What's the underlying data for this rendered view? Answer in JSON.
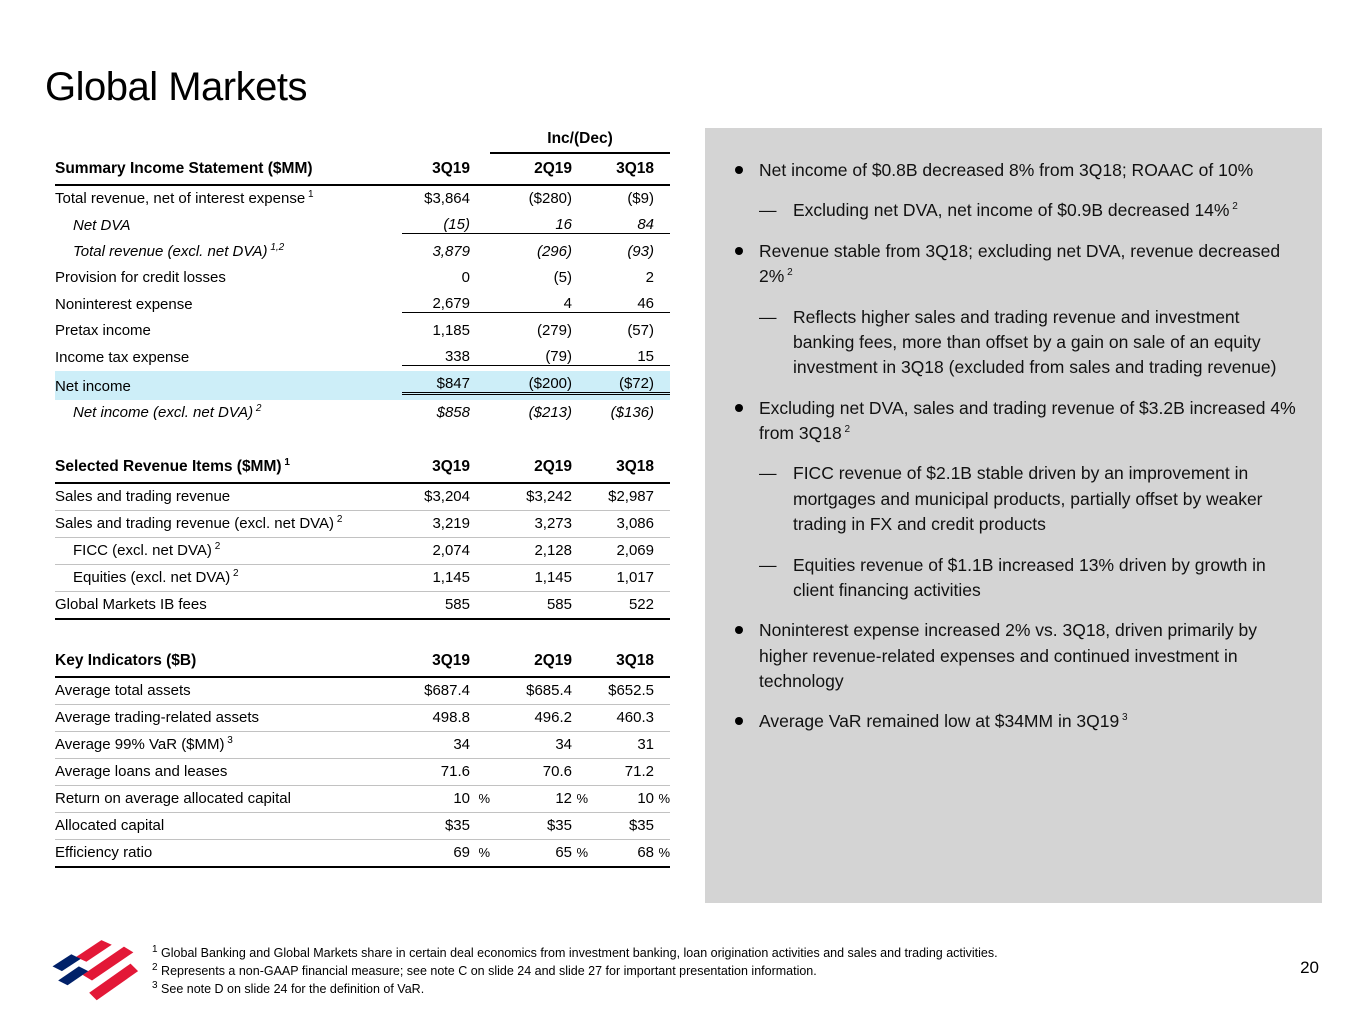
{
  "slide": {
    "title": "Global Markets",
    "page_number": "20",
    "colors": {
      "highlight": "#cdeef8",
      "panel": "#d4d4d4",
      "logo_red": "#e31837",
      "logo_blue": "#012169"
    }
  },
  "tables": [
    {
      "group_header": "Inc/(Dec)",
      "header": {
        "label": "Summary Income Statement ($MM)",
        "sup": "",
        "cols": [
          "3Q19",
          "2Q19",
          "3Q18"
        ]
      },
      "bordered": false,
      "separators": false,
      "rows": [
        {
          "label": "Total revenue, net of interest expense",
          "sup": "1",
          "cells": [
            "$3,864",
            "($280)",
            "($9)"
          ]
        },
        {
          "label": "Net DVA",
          "indent": 1,
          "italic": true,
          "underline": true,
          "cells": [
            "(15)",
            "16",
            "84"
          ]
        },
        {
          "label": "Total revenue (excl. net DVA)",
          "sup": "1,2",
          "indent": 1,
          "italic": true,
          "cells": [
            "3,879",
            "(296)",
            "(93)"
          ]
        },
        {
          "label": "Provision for credit losses",
          "cells": [
            "0",
            "(5)",
            "2"
          ]
        },
        {
          "label": "Noninterest expense",
          "underline": true,
          "cells": [
            "2,679",
            "4",
            "46"
          ]
        },
        {
          "label": "Pretax income",
          "cells": [
            "1,185",
            "(279)",
            "(57)"
          ]
        },
        {
          "label": "Income tax expense",
          "underline": true,
          "cells": [
            "338",
            "(79)",
            "15"
          ]
        },
        {
          "label": "Net income",
          "highlight": true,
          "double_underline": true,
          "cells": [
            "$847",
            "($200)",
            "($72)"
          ]
        },
        {
          "label": "Net income (excl. net DVA)",
          "sup": "2",
          "indent": 1,
          "italic": true,
          "cells": [
            "$858",
            "($213)",
            "($136)"
          ]
        }
      ]
    },
    {
      "group_header": "",
      "header": {
        "label": "Selected Revenue Items ($MM)",
        "sup": "1",
        "cols": [
          "3Q19",
          "2Q19",
          "3Q18"
        ]
      },
      "bordered": true,
      "separators": true,
      "rows": [
        {
          "label": "Sales and trading revenue",
          "cells": [
            "$3,204",
            "$3,242",
            "$2,987"
          ]
        },
        {
          "label": "Sales and trading revenue (excl. net DVA)",
          "sup": "2",
          "cells": [
            "3,219",
            "3,273",
            "3,086"
          ]
        },
        {
          "label": "FICC (excl. net DVA)",
          "sup": "2",
          "indent": 1,
          "cells": [
            "2,074",
            "2,128",
            "2,069"
          ]
        },
        {
          "label": "Equities (excl. net DVA)",
          "sup": "2",
          "indent": 1,
          "cells": [
            "1,145",
            "1,145",
            "1,017"
          ]
        },
        {
          "label": "Global Markets IB fees",
          "cells": [
            "585",
            "585",
            "522"
          ]
        }
      ]
    },
    {
      "group_header": "",
      "header": {
        "label": "Key Indicators ($B)",
        "sup": "",
        "cols": [
          "3Q19",
          "2Q19",
          "3Q18"
        ]
      },
      "bordered": true,
      "separators": true,
      "rows": [
        {
          "label": "Average total assets",
          "cells": [
            "$687.4",
            "$685.4",
            "$652.5"
          ]
        },
        {
          "label": "Average trading-related assets",
          "cells": [
            "498.8",
            "496.2",
            "460.3"
          ]
        },
        {
          "label": "Average 99% VaR ($MM)",
          "sup": "3",
          "cells": [
            "34",
            "34",
            "31"
          ]
        },
        {
          "label": "Average loans and leases",
          "cells": [
            "71.6",
            "70.6",
            "71.2"
          ]
        },
        {
          "label": "Return on average allocated capital",
          "cells": [
            "10 %",
            "12 %",
            "10 %"
          ]
        },
        {
          "label": "Allocated capital",
          "cells": [
            "$35",
            "$35",
            "$35"
          ]
        },
        {
          "label": "Efficiency ratio",
          "cells": [
            "69 %",
            "65 %",
            "68 %"
          ]
        }
      ]
    }
  ],
  "bullets": [
    {
      "text": "Net income of $0.8B decreased 8% from 3Q18; ROAAC of 10%",
      "sup": "",
      "subs": [
        {
          "text": "Excluding net DVA, net income of $0.9B decreased 14%",
          "sup": "2"
        }
      ]
    },
    {
      "text": "Revenue stable from 3Q18; excluding net DVA, revenue decreased 2%",
      "sup": "2",
      "subs": [
        {
          "text": "Reflects higher sales and trading revenue and investment banking fees, more than offset by a gain on sale of an equity investment in 3Q18 (excluded from sales and trading revenue)",
          "sup": ""
        }
      ]
    },
    {
      "text": "Excluding net DVA, sales and trading revenue of $3.2B increased 4% from 3Q18",
      "sup": "2",
      "subs": [
        {
          "text": "FICC revenue of $2.1B stable driven by an improvement in mortgages and municipal products, partially offset by weaker trading in FX and credit products",
          "sup": ""
        },
        {
          "text": "Equities revenue of $1.1B increased 13% driven by growth in client financing activities",
          "sup": ""
        }
      ]
    },
    {
      "text": "Noninterest expense increased 2% vs. 3Q18, driven primarily by higher revenue-related expenses and continued investment in technology",
      "sup": "",
      "subs": []
    },
    {
      "text": "Average VaR remained low at $34MM in 3Q19",
      "sup": "3",
      "subs": []
    }
  ],
  "footnotes": [
    {
      "sup": "1",
      "text": "Global Banking and Global Markets share in certain deal economics from investment banking, loan origination activities and sales and trading activities."
    },
    {
      "sup": "2",
      "text": "Represents a non-GAAP financial measure; see note C on slide 24 and slide 27 for important presentation information."
    },
    {
      "sup": "3",
      "text": "See note D on slide 24 for the definition of VaR."
    }
  ],
  "logo": {
    "name": "Bank of America"
  }
}
